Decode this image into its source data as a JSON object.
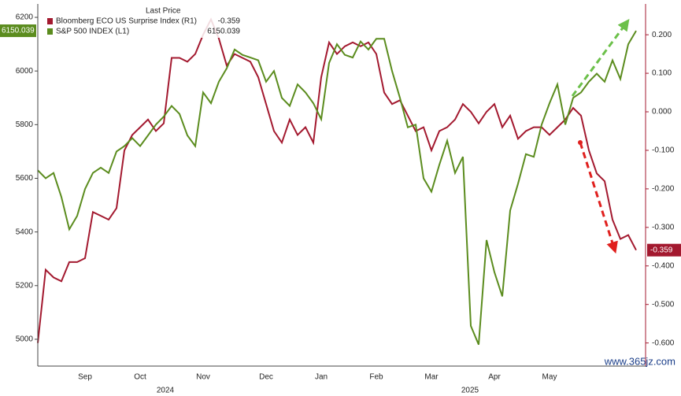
{
  "chart_data": {
    "type": "line",
    "legend_header": "Last Price",
    "categories": [
      null,
      null,
      null,
      null,
      null,
      null,
      "Sep",
      null,
      null,
      null,
      null,
      null,
      null,
      "Oct",
      null,
      null,
      null,
      null,
      null,
      null,
      null,
      "Nov",
      null,
      null,
      null,
      null,
      null,
      null,
      null,
      "Dec",
      null,
      null,
      null,
      null,
      null,
      null,
      "Jan",
      null,
      null,
      null,
      null,
      null,
      null,
      "Feb",
      null,
      null,
      null,
      null,
      null,
      null,
      "Mar",
      null,
      null,
      null,
      null,
      null,
      null,
      null,
      "Apr",
      null,
      null,
      null,
      null,
      null,
      null,
      "May",
      null,
      null,
      null,
      null,
      null,
      null,
      null,
      null,
      null,
      null,
      null
    ],
    "year_labels": [
      "2024",
      "2025"
    ],
    "series": [
      {
        "name": "Bloomberg ECO US Surprise Index (R1)",
        "color": "#a3192f",
        "axis": "y2",
        "values": [
          -0.6,
          -0.41,
          -0.43,
          -0.44,
          -0.39,
          -0.39,
          -0.38,
          -0.26,
          -0.27,
          -0.28,
          -0.25,
          -0.1,
          -0.06,
          -0.04,
          -0.02,
          -0.05,
          -0.03,
          0.14,
          0.14,
          0.13,
          0.15,
          0.2,
          0.24,
          0.19,
          0.12,
          0.15,
          0.14,
          0.13,
          0.09,
          0.02,
          -0.05,
          -0.08,
          -0.02,
          -0.06,
          -0.04,
          -0.08,
          0.09,
          0.18,
          0.15,
          0.17,
          0.18,
          0.17,
          0.18,
          0.15,
          0.05,
          0.02,
          0.03,
          -0.01,
          -0.05,
          -0.04,
          -0.1,
          -0.05,
          -0.04,
          -0.02,
          0.02,
          0.0,
          -0.03,
          0.0,
          0.02,
          -0.04,
          -0.01,
          -0.07,
          -0.05,
          -0.04,
          -0.04,
          -0.06,
          -0.04,
          -0.02,
          0.01,
          -0.01,
          -0.1,
          -0.16,
          -0.18,
          -0.28,
          -0.33,
          -0.32,
          -0.359
        ]
      },
      {
        "name": "S&P 500 INDEX (L1)",
        "color": "#5b8c1e",
        "axis": "y",
        "values": [
          5630,
          5600,
          5620,
          5530,
          5410,
          5460,
          5560,
          5620,
          5640,
          5620,
          5700,
          5720,
          5750,
          5720,
          5760,
          5800,
          5830,
          5870,
          5840,
          5760,
          5720,
          5920,
          5880,
          5960,
          6010,
          6080,
          6060,
          6050,
          6040,
          5960,
          6000,
          5900,
          5870,
          5950,
          5920,
          5880,
          5820,
          6030,
          6100,
          6060,
          6050,
          6110,
          6080,
          6120,
          6120,
          6000,
          5900,
          5790,
          5800,
          5600,
          5550,
          5650,
          5740,
          5620,
          5680,
          5050,
          4980,
          5370,
          5250,
          5160,
          5480,
          5580,
          5690,
          5680,
          5800,
          5880,
          5950,
          5800,
          5900,
          5920,
          5960,
          5990,
          5960,
          6040,
          5970,
          6100,
          6150.039
        ]
      }
    ],
    "ylim": [
      4900,
      6250
    ],
    "yticks": [
      5000,
      5200,
      5400,
      5600,
      5800,
      6000,
      6200
    ],
    "y2lim": [
      -0.66,
      0.28
    ],
    "y2ticks": [
      {
        "value": 0.2,
        "label": "0.200"
      },
      {
        "value": 0.1,
        "label": "0.100"
      },
      {
        "value": 0,
        "label": "0.000"
      },
      {
        "value": -0.1,
        "label": "-0.100"
      },
      {
        "value": -0.2,
        "label": "-0.200"
      },
      {
        "value": -0.3,
        "label": "-0.300"
      },
      {
        "value": -0.4,
        "label": "-0.400"
      },
      {
        "value": -0.5,
        "label": "-0.500"
      },
      {
        "value": -0.6,
        "label": "-0.600"
      }
    ],
    "watermark": "www.365jz.com"
  }
}
